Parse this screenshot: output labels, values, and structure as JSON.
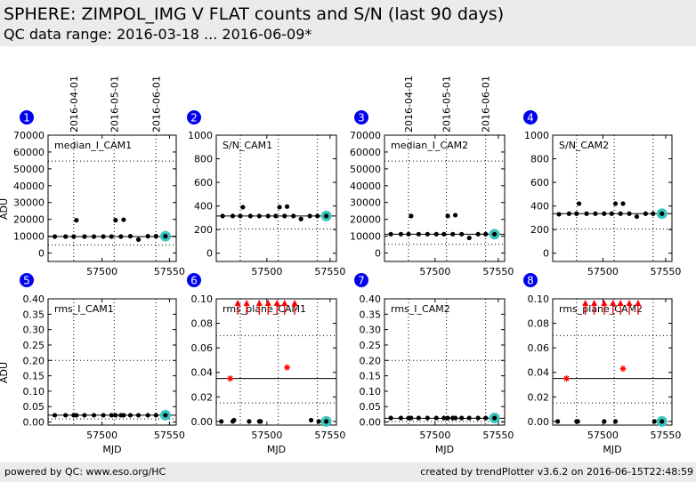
{
  "header": {
    "title": "SPHERE: ZIMPOL_IMG V FLAT counts and S/N (last 90 days)",
    "subtitle": "QC data range: 2016-03-18 ... 2016-06-09*"
  },
  "footer": {
    "left": "powered by QC: www.eso.org/HC",
    "right": "created by trendPlotter v3.6.2 on 2016-06-15T22:48:59"
  },
  "colors": {
    "badge": "#0000ee",
    "point": "#000000",
    "outlier": "#ff0000",
    "latest_marker": "#3cc6c0",
    "panel_bg": "#ebebeb"
  },
  "date_axis": {
    "labels": [
      "2016-04-01",
      "2016-05-01",
      "2016-06-01"
    ],
    "mjd": [
      57479,
      57509,
      57540
    ]
  },
  "chart_data": [
    {
      "type": "scatter",
      "panel": "1",
      "label": "median_I_CAM1",
      "ylabel": "ADU",
      "xlabel": "",
      "xlim": [
        57460,
        57555
      ],
      "ylim": [
        -5000,
        70000
      ],
      "yticks": [
        0,
        10000,
        20000,
        30000,
        40000,
        50000,
        60000,
        70000
      ],
      "xticks": [
        57500,
        57550
      ],
      "reference_line": 9800,
      "limit_lines": [
        4800,
        54600
      ],
      "x": [
        57465,
        57473,
        57479,
        57481,
        57487,
        57494,
        57501,
        57507,
        57510,
        57514,
        57516,
        57521,
        57527,
        57534,
        57540,
        57547
      ],
      "y": [
        9800,
        9800,
        9800,
        19500,
        9800,
        9800,
        9800,
        9800,
        19500,
        9800,
        19800,
        10000,
        8000,
        10000,
        10000,
        10000
      ],
      "latest": {
        "x": 57547,
        "y": 10000
      }
    },
    {
      "type": "scatter",
      "panel": "2",
      "label": "S/N_CAM1",
      "ylabel": "",
      "xlabel": "",
      "xlim": [
        57460,
        57555
      ],
      "ylim": [
        -70,
        1000
      ],
      "yticks": [
        0,
        200,
        400,
        600,
        800,
        1000
      ],
      "xticks": [
        57500,
        57550
      ],
      "reference_line": 315,
      "limit_lines": [
        205
      ],
      "x": [
        57465,
        57473,
        57479,
        57481,
        57487,
        57494,
        57501,
        57507,
        57510,
        57514,
        57516,
        57521,
        57527,
        57534,
        57540,
        57547
      ],
      "y": [
        315,
        315,
        315,
        390,
        315,
        315,
        315,
        315,
        390,
        315,
        395,
        315,
        290,
        315,
        315,
        315
      ],
      "latest": {
        "x": 57547,
        "y": 315
      }
    },
    {
      "type": "scatter",
      "panel": "3",
      "label": "median_I_CAM2",
      "ylabel": "",
      "xlabel": "",
      "xlim": [
        57460,
        57555
      ],
      "ylim": [
        -5000,
        70000
      ],
      "yticks": [
        0,
        10000,
        20000,
        30000,
        40000,
        50000,
        60000,
        70000
      ],
      "xticks": [
        57500,
        57550
      ],
      "reference_line": 11200,
      "limit_lines": [
        5200,
        54600
      ],
      "x": [
        57465,
        57473,
        57479,
        57481,
        57487,
        57494,
        57501,
        57507,
        57510,
        57514,
        57516,
        57521,
        57527,
        57534,
        57540,
        57547
      ],
      "y": [
        11200,
        11200,
        11200,
        22000,
        11200,
        11200,
        11200,
        11200,
        22000,
        11200,
        22500,
        11200,
        9000,
        11200,
        11200,
        11200
      ],
      "latest": {
        "x": 57547,
        "y": 11200
      }
    },
    {
      "type": "scatter",
      "panel": "4",
      "label": "S/N_CAM2",
      "ylabel": "",
      "xlabel": "",
      "xlim": [
        57460,
        57555
      ],
      "ylim": [
        -70,
        1000
      ],
      "yticks": [
        0,
        200,
        400,
        600,
        800,
        1000
      ],
      "xticks": [
        57500,
        57550
      ],
      "reference_line": 335,
      "limit_lines": [
        205
      ],
      "x": [
        57465,
        57473,
        57479,
        57481,
        57487,
        57494,
        57501,
        57507,
        57510,
        57514,
        57516,
        57521,
        57527,
        57534,
        57540,
        57547
      ],
      "y": [
        330,
        335,
        335,
        420,
        335,
        335,
        335,
        335,
        420,
        335,
        420,
        335,
        310,
        335,
        335,
        335
      ],
      "latest": {
        "x": 57547,
        "y": 335
      }
    },
    {
      "type": "scatter",
      "panel": "5",
      "label": "rms_I_CAM1",
      "ylabel": "ADU",
      "xlabel": "MJD",
      "xlim": [
        57460,
        57555
      ],
      "ylim": [
        -0.01,
        0.4
      ],
      "yticks": [
        0.0,
        0.05,
        0.1,
        0.15,
        0.2,
        0.25,
        0.3,
        0.35,
        0.4
      ],
      "xticks": [
        57500,
        57550
      ],
      "reference_line": 0.022,
      "limit_lines": [
        0.01,
        0.2
      ],
      "x": [
        57465,
        57473,
        57479,
        57481,
        57487,
        57494,
        57501,
        57507,
        57510,
        57514,
        57516,
        57521,
        57527,
        57534,
        57540,
        57547
      ],
      "y": [
        0.022,
        0.022,
        0.022,
        0.022,
        0.022,
        0.022,
        0.022,
        0.022,
        0.022,
        0.022,
        0.022,
        0.022,
        0.022,
        0.022,
        0.022,
        0.022
      ],
      "latest": {
        "x": 57547,
        "y": 0.022
      }
    },
    {
      "type": "scatter",
      "panel": "6",
      "label": "rms_plane_CAM1",
      "ylabel": "",
      "xlabel": "MJD",
      "xlim": [
        57460,
        57555
      ],
      "ylim": [
        -0.003,
        0.1
      ],
      "yticks": [
        0.0,
        0.02,
        0.04,
        0.06,
        0.08,
        0.1
      ],
      "xticks": [
        57500,
        57550
      ],
      "reference_line": 0.035,
      "limit_lines": [
        0.07,
        0.015
      ],
      "x": [
        57464,
        57473,
        57474,
        57486,
        57494,
        57495,
        57535,
        57541,
        57547
      ],
      "y": [
        0.0,
        0.0,
        0.001,
        0.0,
        0.0,
        0.0,
        0.001,
        0.0,
        0.0
      ],
      "outliers": {
        "x": [
          57471,
          57516
        ],
        "y": [
          0.035,
          0.044
        ]
      },
      "offscale_high_x": [
        57477,
        57484,
        57494,
        57501,
        57508,
        57514,
        57522
      ],
      "latest": {
        "x": 57547,
        "y": 0.0
      }
    },
    {
      "type": "scatter",
      "panel": "7",
      "label": "rms_I_CAM2",
      "ylabel": "",
      "xlabel": "MJD",
      "xlim": [
        57460,
        57555
      ],
      "ylim": [
        -0.01,
        0.4
      ],
      "yticks": [
        0.0,
        0.05,
        0.1,
        0.15,
        0.2,
        0.25,
        0.3,
        0.35,
        0.4
      ],
      "xticks": [
        57500,
        57550
      ],
      "reference_line": 0.012,
      "limit_lines": [
        0.002,
        0.2
      ],
      "x": [
        57465,
        57473,
        57479,
        57481,
        57487,
        57494,
        57501,
        57507,
        57510,
        57514,
        57516,
        57521,
        57527,
        57534,
        57540,
        57547
      ],
      "y": [
        0.013,
        0.013,
        0.013,
        0.013,
        0.013,
        0.013,
        0.013,
        0.013,
        0.013,
        0.013,
        0.013,
        0.013,
        0.013,
        0.013,
        0.013,
        0.013
      ],
      "latest": {
        "x": 57547,
        "y": 0.013
      }
    },
    {
      "type": "scatter",
      "panel": "8",
      "label": "rms_plane_CAM2",
      "ylabel": "",
      "xlabel": "MJD",
      "xlim": [
        57460,
        57555
      ],
      "ylim": [
        -0.003,
        0.1
      ],
      "yticks": [
        0.0,
        0.02,
        0.04,
        0.06,
        0.08,
        0.1
      ],
      "xticks": [
        57500,
        57550
      ],
      "reference_line": 0.035,
      "limit_lines": [
        0.07,
        0.015
      ],
      "x": [
        57464,
        57479,
        57480,
        57501,
        57510,
        57541,
        57547
      ],
      "y": [
        0.0,
        0.0,
        0.0,
        0.0,
        0.0,
        0.0,
        0.0
      ],
      "outliers": {
        "x": [
          57471,
          57516
        ],
        "y": [
          0.035,
          0.043
        ]
      },
      "offscale_high_x": [
        57486,
        57493,
        57501,
        57508,
        57514,
        57521,
        57528
      ],
      "latest": {
        "x": 57547,
        "y": 0.0
      }
    }
  ]
}
